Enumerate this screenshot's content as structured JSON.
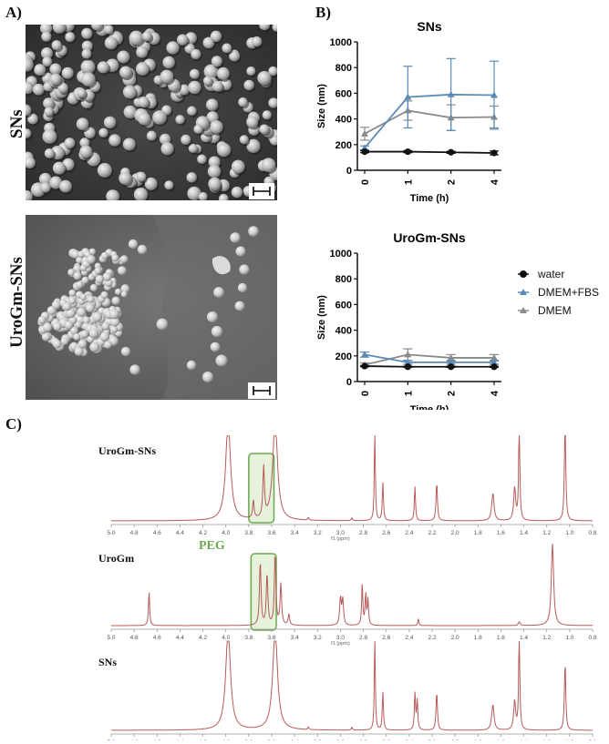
{
  "panels": {
    "a": "A)",
    "b": "B)",
    "c": "C)"
  },
  "sem": {
    "top_label": "SNs",
    "bottom_label": "UroGm-SNs"
  },
  "colors": {
    "water": "#111111",
    "dmem_fbs": "#5b8ab5",
    "dmem": "#8a8a8a",
    "nmr_line": "#b85a5a",
    "peg_box": "#6aa84f",
    "peg_fill": "#e6f2dc"
  },
  "legend": {
    "water": "water",
    "dmem_fbs": "DMEM+FBS",
    "dmem": "DMEM"
  },
  "chart_data": [
    {
      "type": "line",
      "title": "SNs",
      "xlabel": "Time (h)",
      "ylabel": "Size (nm)",
      "x": [
        0,
        1,
        2,
        4
      ],
      "x_ticks": [
        "0",
        "1",
        "2",
        "4"
      ],
      "ylim": [
        0,
        1000
      ],
      "y_ticks": [
        "0",
        "200",
        "400",
        "600",
        "800",
        "1000"
      ],
      "series": [
        {
          "name": "water",
          "values": [
            145,
            145,
            140,
            135
          ],
          "errors": [
            8,
            8,
            8,
            15
          ]
        },
        {
          "name": "DMEM+FBS",
          "values": [
            175,
            570,
            590,
            585
          ],
          "errors": [
            15,
            240,
            280,
            265
          ]
        },
        {
          "name": "DMEM",
          "values": [
            285,
            465,
            410,
            415
          ],
          "errors": [
            50,
            75,
            100,
            85
          ]
        }
      ]
    },
    {
      "type": "line",
      "title": "UroGm-SNs",
      "xlabel": "Time (h)",
      "ylabel": "Size (nm)",
      "x": [
        0,
        1,
        2,
        4
      ],
      "x_ticks": [
        "0",
        "1",
        "2",
        "4"
      ],
      "ylim": [
        0,
        1000
      ],
      "y_ticks": [
        "0",
        "200",
        "400",
        "600",
        "800",
        "1000"
      ],
      "series": [
        {
          "name": "water",
          "values": [
            120,
            115,
            115,
            115
          ],
          "errors": [
            5,
            5,
            5,
            5
          ]
        },
        {
          "name": "DMEM+FBS",
          "values": [
            210,
            150,
            150,
            150
          ],
          "errors": [
            20,
            15,
            15,
            15
          ]
        },
        {
          "name": "DMEM",
          "values": [
            130,
            210,
            185,
            185
          ],
          "errors": [
            15,
            45,
            25,
            25
          ]
        }
      ]
    }
  ],
  "nmr": {
    "axis_ticks": [
      "5.0",
      "4.8",
      "4.6",
      "4.4",
      "4.2",
      "4.0",
      "3.8",
      "3.6",
      "3.4",
      "3.2",
      "3.0",
      "2.8",
      "2.6",
      "2.4",
      "2.2",
      "2.0",
      "1.8",
      "1.6",
      "1.4",
      "1.2",
      "1.0",
      "0.8"
    ],
    "axis_unit": "f1 (ppm)",
    "peg_label": "PEG",
    "spectra": [
      {
        "name": "UroGm-SNs",
        "peaks": [
          [
            3.98,
            110,
            0.025
          ],
          [
            3.57,
            110,
            0.025
          ],
          [
            3.67,
            55,
            0.008
          ],
          [
            3.76,
            20,
            0.008
          ],
          [
            2.7,
            110,
            0.005
          ],
          [
            2.63,
            42,
            0.006
          ],
          [
            2.35,
            38,
            0.006
          ],
          [
            2.16,
            42,
            0.007
          ],
          [
            1.67,
            30,
            0.012
          ],
          [
            1.48,
            36,
            0.01
          ],
          [
            1.44,
            110,
            0.006
          ],
          [
            1.04,
            110,
            0.007
          ],
          [
            3.28,
            3,
            0.006
          ],
          [
            2.9,
            3,
            0.006
          ]
        ]
      },
      {
        "name": "UroGm",
        "peaks": [
          [
            4.67,
            38,
            0.006
          ],
          [
            3.7,
            70,
            0.008
          ],
          [
            3.64,
            56,
            0.008
          ],
          [
            3.57,
            78,
            0.008
          ],
          [
            3.52,
            45,
            0.008
          ],
          [
            3.45,
            12,
            0.008
          ],
          [
            3.0,
            30,
            0.008
          ],
          [
            2.98,
            28,
            0.008
          ],
          [
            2.81,
            46,
            0.006
          ],
          [
            2.78,
            34,
            0.006
          ],
          [
            2.76,
            28,
            0.006
          ],
          [
            2.32,
            8,
            0.005
          ],
          [
            1.44,
            4,
            0.01
          ],
          [
            1.15,
            90,
            0.012
          ],
          [
            0.73,
            10,
            0.008
          ]
        ]
      },
      {
        "name": "SNs",
        "peaks": [
          [
            3.98,
            110,
            0.025
          ],
          [
            3.57,
            110,
            0.025
          ],
          [
            2.7,
            110,
            0.005
          ],
          [
            2.63,
            42,
            0.006
          ],
          [
            2.35,
            40,
            0.006
          ],
          [
            2.33,
            32,
            0.006
          ],
          [
            2.16,
            42,
            0.007
          ],
          [
            1.67,
            28,
            0.012
          ],
          [
            1.48,
            32,
            0.01
          ],
          [
            1.44,
            110,
            0.006
          ],
          [
            1.04,
            75,
            0.007
          ],
          [
            3.28,
            3,
            0.006
          ],
          [
            2.9,
            3,
            0.006
          ]
        ]
      }
    ]
  }
}
